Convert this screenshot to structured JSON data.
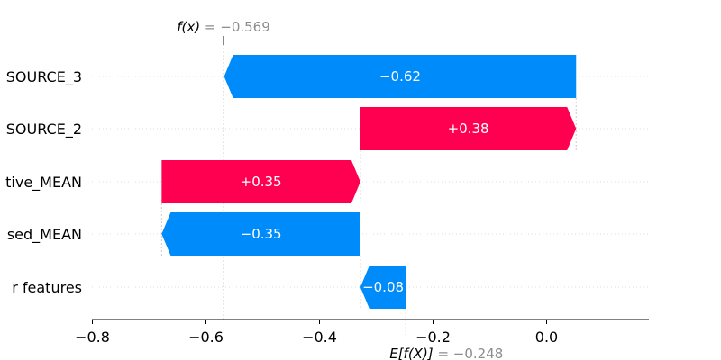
{
  "chart_data": {
    "type": "waterfall",
    "fx_label": "f(x) = −0.569",
    "fx_value": -0.569,
    "base_label": "E[f(X)] = −0.248",
    "base_value": -0.248,
    "features": [
      {
        "name": "SOURCE_3",
        "value": -0.62,
        "label": "−0.62"
      },
      {
        "name": "SOURCE_2",
        "value": 0.38,
        "label": "+0.38"
      },
      {
        "name": "tive_MEAN",
        "value": 0.35,
        "label": "+0.35"
      },
      {
        "name": "sed_MEAN",
        "value": -0.35,
        "label": "−0.35"
      },
      {
        "name": "r features",
        "value": -0.08,
        "label": "−0.08"
      }
    ],
    "xticks": [
      {
        "v": -0.8,
        "label": "−0.8"
      },
      {
        "v": -0.6,
        "label": "−0.6"
      },
      {
        "v": -0.4,
        "label": "−0.4"
      },
      {
        "v": -0.2,
        "label": "−0.2"
      },
      {
        "v": 0.0,
        "label": "0.0"
      }
    ],
    "xlim": [
      -0.8,
      0.17
    ],
    "colors": {
      "positive": "#ff0051",
      "negative": "#008bfb",
      "guide": "#cccccc"
    }
  }
}
